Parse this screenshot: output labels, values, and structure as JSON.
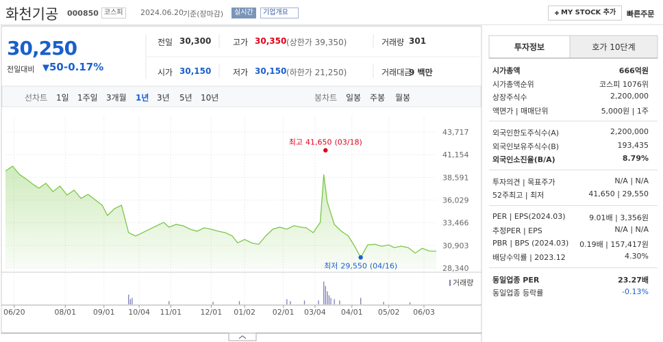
{
  "header": {
    "title": "화천기공",
    "code": "000850",
    "market": "코스피",
    "date": "2024.06.20",
    "basis": "기준(장마감)",
    "realtime": "실시간",
    "overview": "기업개요",
    "my_stock": "MY STOCK 추가",
    "quick_order": "빠른주문"
  },
  "quote": {
    "price": "30,250",
    "change_label": "전일대비",
    "change": "50",
    "change_rate": "-0.17%"
  },
  "summary": [
    [
      {
        "label": "전일",
        "value": "30,300"
      },
      {
        "label": "고가",
        "value": "30,350",
        "note": "(상한가 39,350)",
        "color": "#e0001b"
      },
      {
        "label": "거래량",
        "value": "301"
      }
    ],
    [
      {
        "label": "시가",
        "value": "30,150",
        "color": "#1a5fcc"
      },
      {
        "label": "저가",
        "value": "30,150",
        "note": "(하한가 21,250)",
        "color": "#1a5fcc"
      },
      {
        "label": "거래대금",
        "value": "9 백만"
      }
    ]
  ],
  "chart_tabs": {
    "line_label": "선차트",
    "line": [
      "1일",
      "1주일",
      "3개월",
      "1년",
      "3년",
      "5년",
      "10년"
    ],
    "active": 3,
    "candle_label": "봉차트",
    "candle": [
      "일봉",
      "주봉",
      "월봉"
    ]
  },
  "chart_data": [
    {
      "type": "area",
      "color": "#79c646",
      "x": [
        0,
        4,
        8,
        12,
        16,
        19,
        23,
        27,
        31,
        35,
        39,
        43,
        47,
        51,
        55,
        58,
        62,
        66,
        70,
        74,
        78,
        82,
        86,
        90,
        93,
        97,
        101,
        105,
        109,
        113,
        117,
        121,
        125,
        129,
        132,
        136,
        140,
        144,
        148,
        152,
        156,
        160,
        164,
        168,
        171,
        175,
        179,
        181,
        183,
        187,
        191,
        195,
        199,
        202,
        206,
        210,
        214,
        218,
        221,
        225,
        229,
        233,
        237,
        241,
        245
      ],
      "values": [
        39310,
        39850,
        38920,
        38380,
        37760,
        37380,
        37920,
        36990,
        37610,
        36600,
        37150,
        36220,
        36680,
        36060,
        35450,
        34290,
        35060,
        35450,
        32350,
        31970,
        32350,
        32740,
        33130,
        33510,
        32970,
        33280,
        33130,
        32740,
        32510,
        32900,
        32740,
        32510,
        32350,
        31970,
        31190,
        31580,
        31190,
        31040,
        31970,
        32740,
        32970,
        32740,
        33130,
        32970,
        32900,
        32350,
        33510,
        38920,
        35830,
        33280,
        32510,
        31970,
        30660,
        29550,
        30970,
        31040,
        30810,
        30970,
        30660,
        30810,
        30660,
        30040,
        30580,
        30270,
        30250
      ],
      "xlim": [
        0,
        245
      ],
      "xticks": [
        {
          "value": 5,
          "label": "06/20"
        },
        {
          "value": 34,
          "label": "08/01"
        },
        {
          "value": 56,
          "label": "09/01"
        },
        {
          "value": 76,
          "label": "10/04"
        },
        {
          "value": 94,
          "label": "11/01"
        },
        {
          "value": 117,
          "label": "12/01"
        },
        {
          "value": 136,
          "label": "01/02"
        },
        {
          "value": 158,
          "label": "02/01"
        },
        {
          "value": 176,
          "label": "03/04"
        },
        {
          "value": 197,
          "label": "04/01"
        },
        {
          "value": 218,
          "label": "05/02"
        },
        {
          "value": 238,
          "label": "06/03"
        }
      ],
      "ylim": [
        28340,
        43717
      ],
      "yticks": [
        {
          "value": 28340,
          "label": "28,340"
        },
        {
          "value": 30903,
          "label": "30,903"
        },
        {
          "value": 33466,
          "label": "33,466"
        },
        {
          "value": 36029,
          "label": "36,029"
        },
        {
          "value": 38591,
          "label": "38,591"
        },
        {
          "value": 41154,
          "label": "41,154"
        },
        {
          "value": 43717,
          "label": "43,717"
        }
      ],
      "grid": true,
      "annotations": [
        {
          "label": "최고",
          "value": 41650,
          "value_label": "41,650",
          "date": "(03/18)",
          "x": 182,
          "color": "#e0001b",
          "side": "above"
        },
        {
          "label": "최저",
          "value": 29550,
          "value_label": "29,550",
          "date": "(04/16)",
          "x": 202,
          "color": "#1a5fcc",
          "side": "below"
        }
      ]
    },
    {
      "type": "bar",
      "legend": "거래량",
      "color": "#7b7bb5",
      "x": [
        70,
        71,
        72,
        93,
        118,
        133,
        160,
        162,
        170,
        178,
        181,
        182,
        183,
        184,
        185,
        187,
        190,
        202,
        215,
        230
      ],
      "values": [
        21400,
        11400,
        14300,
        7100,
        5700,
        7100,
        11400,
        7100,
        8600,
        8600,
        50000,
        40000,
        28600,
        20000,
        14300,
        11400,
        8600,
        14300,
        5700,
        4300
      ],
      "ylim": [
        0,
        60000
      ]
    }
  ],
  "sidebar": {
    "tabs": [
      "투자정보",
      "호가 10단계"
    ],
    "sections": [
      [
        {
          "label": "시가총액",
          "value": "666억원",
          "strong": true
        },
        {
          "label": "시가총액순위",
          "value": "코스피 1076위"
        },
        {
          "label": "상장주식수",
          "value": "2,200,000"
        },
        {
          "label": "액면가 | 매매단위",
          "value": "5,000원 | 1주"
        }
      ],
      [
        {
          "label": "외국인한도주식수(A)",
          "value": "2,200,000"
        },
        {
          "label": "외국인보유주식수(B)",
          "value": "193,435"
        },
        {
          "label": "외국인소진율(B/A)",
          "value": "8.79%",
          "strong": true
        }
      ],
      [
        {
          "label": "투자의견 | 목표주가",
          "value": "N/A | N/A"
        },
        {
          "label": "52주최고 | 최저",
          "value": "41,650 | 29,550"
        }
      ],
      [
        {
          "label": "PER | EPS(2024.03)",
          "value": "9.01배 | 3,356원"
        },
        {
          "label": "추정PER | EPS",
          "value": "N/A | N/A"
        },
        {
          "label": "PBR | BPS (2024.03)",
          "value": "0.19배 | 157,417원"
        },
        {
          "label": "배당수익률 | 2023.12",
          "value": "4.30%"
        }
      ],
      [
        {
          "label": "동일업종 PER",
          "value": "23.27배",
          "strong": true
        },
        {
          "label": "동일업종 등락률",
          "value": "-0.13%",
          "color": "#1a5fcc"
        }
      ]
    ]
  }
}
